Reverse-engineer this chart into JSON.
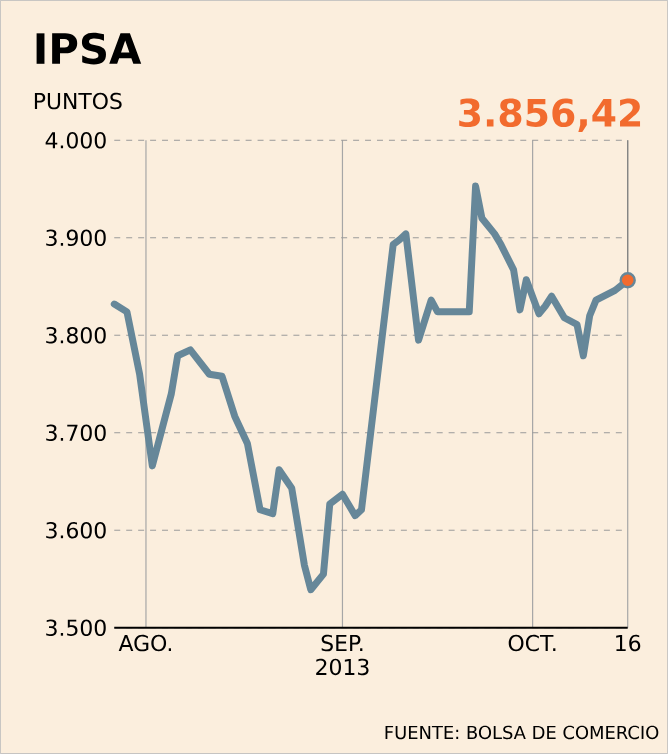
{
  "chart_data": {
    "type": "line",
    "title": "IPSA",
    "ylabel": "PUNTOS",
    "x": [
      "2013-07-27",
      "2013-07-29",
      "2013-07-31",
      "2013-08-02",
      "2013-08-05",
      "2013-08-06",
      "2013-08-08",
      "2013-08-11",
      "2013-08-13",
      "2013-08-15",
      "2013-08-17",
      "2013-08-19",
      "2013-08-21",
      "2013-08-22",
      "2013-08-24",
      "2013-08-26",
      "2013-08-27",
      "2013-08-29",
      "2013-08-30",
      "2013-09-01",
      "2013-09-03",
      "2013-09-04",
      "2013-09-09",
      "2013-09-10",
      "2013-09-11",
      "2013-09-13",
      "2013-09-15",
      "2013-09-16",
      "2013-09-21",
      "2013-09-22",
      "2013-09-23",
      "2013-09-25",
      "2013-09-26",
      "2013-09-28",
      "2013-09-29",
      "2013-09-30",
      "2013-10-02",
      "2013-10-03",
      "2013-10-04",
      "2013-10-06",
      "2013-10-08",
      "2013-10-09",
      "2013-10-10",
      "2013-10-11",
      "2013-10-14",
      "2013-10-16"
    ],
    "series": [
      {
        "color": "#668799",
        "values": [
          3832,
          3824,
          3760,
          3666,
          3740,
          3779,
          3785,
          3760,
          3758,
          3717,
          3689,
          3621,
          3617,
          3662,
          3643,
          3564,
          3539,
          3555,
          3627,
          3637,
          3615,
          3621,
          3893,
          3898,
          3904,
          3795,
          3836,
          3824,
          3824,
          3953,
          3920,
          3904,
          3893,
          3867,
          3826,
          3857,
          3822,
          3830,
          3840,
          3818,
          3811,
          3779,
          3820,
          3836,
          3846,
          3856.42
        ]
      }
    ],
    "xlim": [
      "2013-07-27",
      "2013-10-16"
    ],
    "xticks": [
      {
        "value": "2013-08-01",
        "label": "AGO."
      },
      {
        "value": "2013-09-01",
        "label": "SEP. 2013"
      },
      {
        "value": "2013-10-01",
        "label": "OCT."
      },
      {
        "value": "2013-10-16",
        "label": "16"
      }
    ],
    "ylim": [
      3500,
      4000
    ],
    "yticks": [
      {
        "value": 3500,
        "label": "3.500"
      },
      {
        "value": 3600,
        "label": "3.600"
      },
      {
        "value": 3700,
        "label": "3.700"
      },
      {
        "value": 3800,
        "label": "3.800"
      },
      {
        "value": 3900,
        "label": "3.900"
      },
      {
        "value": 4000,
        "label": "4.000"
      }
    ],
    "grid": true,
    "line_style": "solid",
    "marker": "none",
    "annotations": [
      {
        "text": "3.856,42",
        "x": "2013-10-16",
        "y": 3856.42
      },
      "FUENTE: BOLSA DE COMERCIO"
    ]
  }
}
